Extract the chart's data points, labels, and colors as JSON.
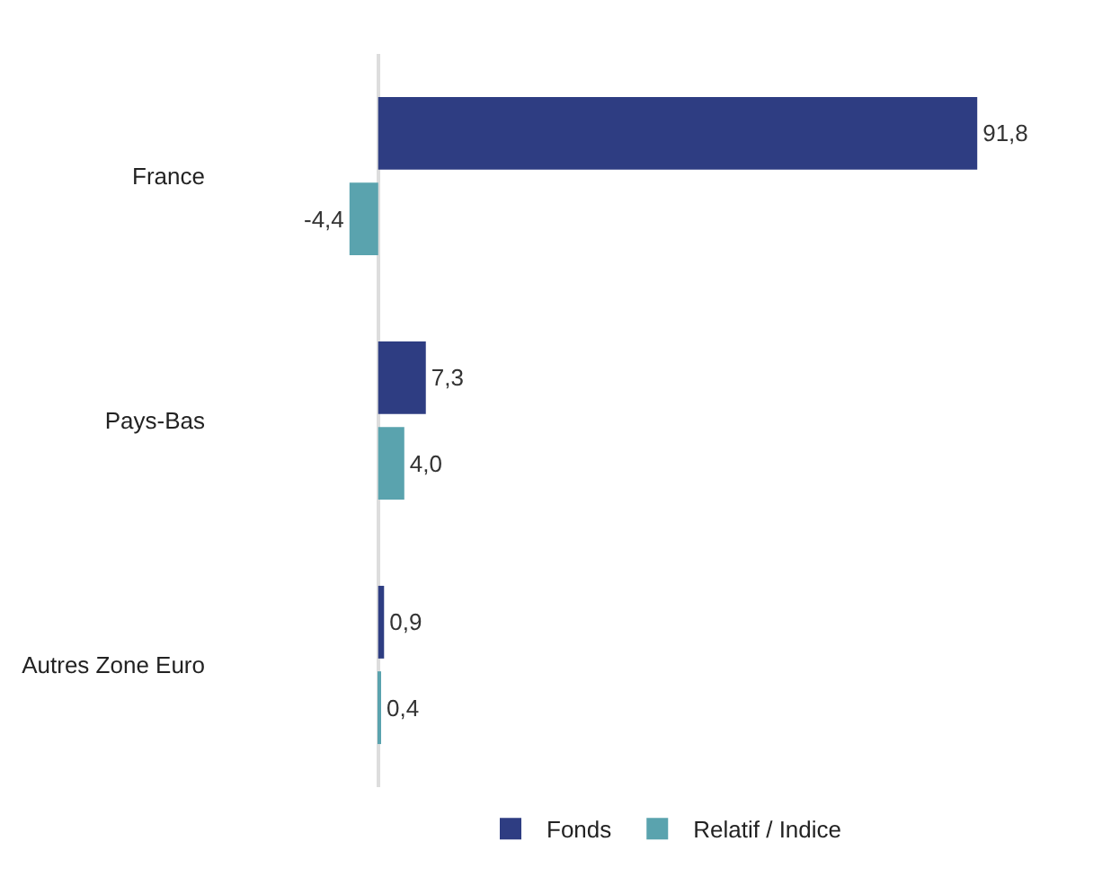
{
  "chart_data": {
    "type": "bar",
    "orientation": "horizontal",
    "categories": [
      "France",
      "Pays-Bas",
      "Autres Zone Euro"
    ],
    "series": [
      {
        "name": "Fonds",
        "color": "#2e3d82",
        "values": [
          91.8,
          7.3,
          0.9
        ],
        "value_labels": [
          "91,8",
          "7,3",
          "0,9"
        ]
      },
      {
        "name": "Relatif / Indice",
        "color": "#5aa3ae",
        "values": [
          -4.4,
          4.0,
          0.4
        ],
        "value_labels": [
          "-4,4",
          "4,0",
          "0,4"
        ]
      }
    ],
    "legend": "bottom"
  }
}
